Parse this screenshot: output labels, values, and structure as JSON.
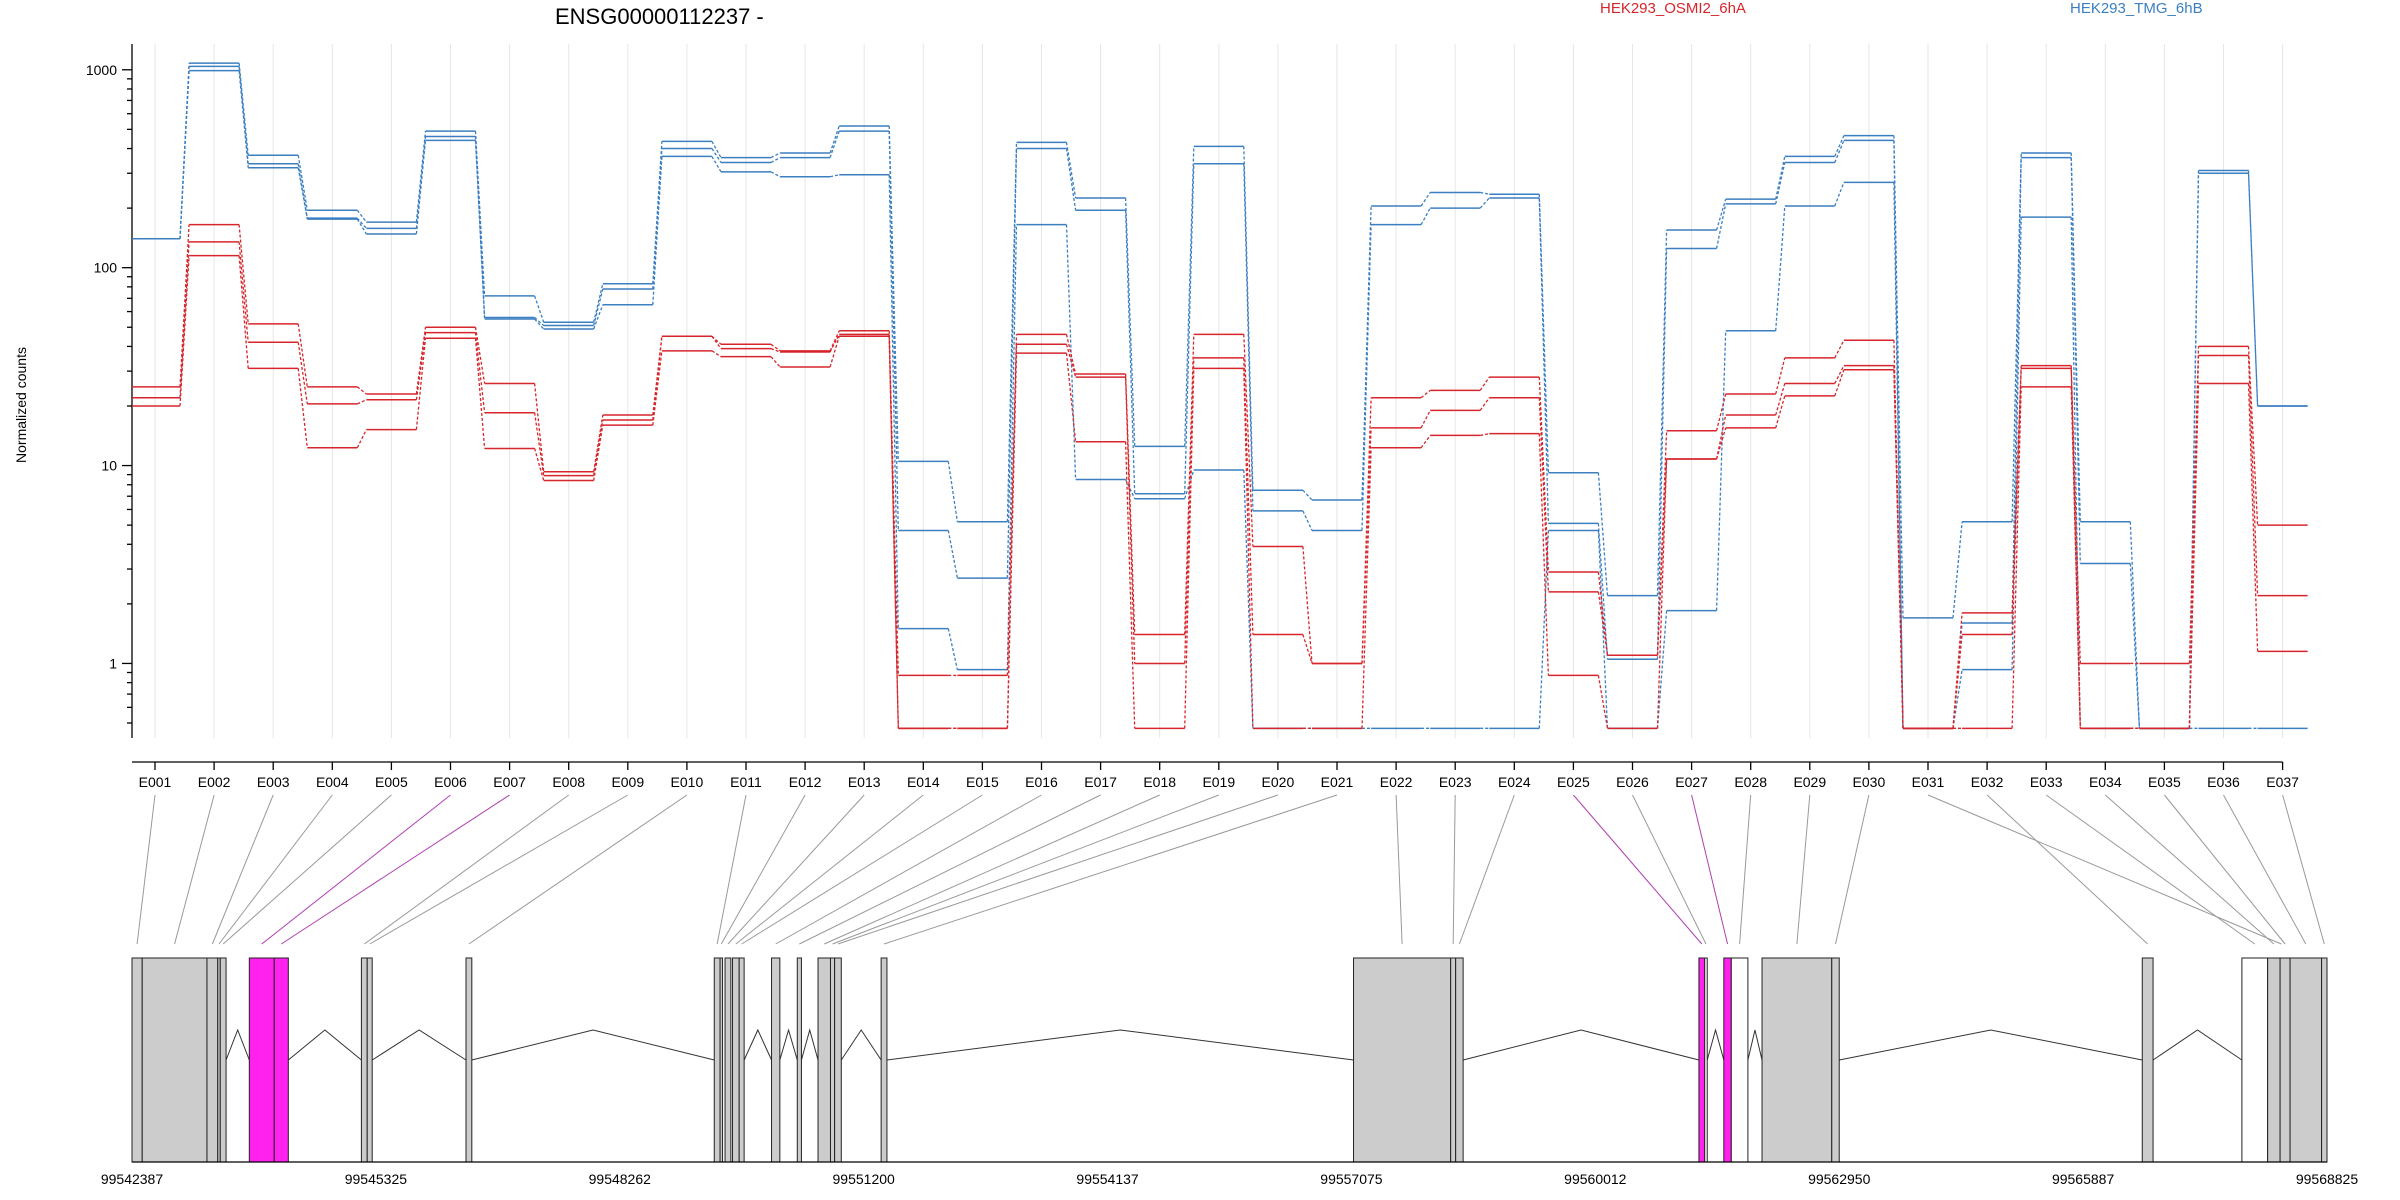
{
  "chart_data": {
    "type": "line",
    "title": "ENSG00000112237 -",
    "ylabel": "Normalized counts",
    "yscale": "log",
    "ylim": [
      0.42,
      1350
    ],
    "yticks": [
      {
        "value": 1,
        "label": "1"
      },
      {
        "value": 10,
        "label": "10"
      },
      {
        "value": 100,
        "label": "100"
      },
      {
        "value": 1000,
        "label": "1000"
      }
    ],
    "grid": true,
    "legend": [
      {
        "label": "HEK293_OSMI2_6hA",
        "color": "#d6262b"
      },
      {
        "label": "HEK293_TMG_6hB",
        "color": "#3b7fc1"
      }
    ],
    "categories": [
      "E001",
      "E002",
      "E003",
      "E004",
      "E005",
      "E006",
      "E007",
      "E008",
      "E009",
      "E010",
      "E011",
      "E012",
      "E013",
      "E014",
      "E015",
      "E016",
      "E017",
      "E018",
      "E019",
      "E020",
      "E021",
      "E022",
      "E023",
      "E024",
      "E025",
      "E026",
      "E027",
      "E028",
      "E029",
      "E030",
      "E031",
      "E032",
      "E033",
      "E034",
      "E035",
      "E036",
      "E037"
    ],
    "series": [
      {
        "name": "HEK293_TMG_6hB",
        "color": "#3b7fc1",
        "values": [
          140,
          1080,
          370,
          195,
          170,
          490,
          72,
          53,
          83,
          435,
          360,
          380,
          520,
          10.5,
          5.2,
          430,
          225,
          12.5,
          410,
          7.5,
          6.7,
          205,
          240,
          235,
          9.2,
          2.2,
          155,
          222,
          365,
          465,
          1.7,
          5.2,
          380,
          5.2,
          0.47,
          310,
          20
        ]
      },
      {
        "name": "HEK293_TMG_6hB",
        "color": "#3b7fc1",
        "values": [
          140,
          1040,
          335,
          178,
          158,
          460,
          56,
          51,
          78,
          400,
          340,
          360,
          490,
          4.7,
          2.7,
          400,
          195,
          7.2,
          335,
          5.9,
          4.7,
          165,
          200,
          225,
          5.1,
          1.05,
          125,
          210,
          340,
          440,
          0.47,
          1.6,
          360,
          3.2,
          0.47,
          300,
          20
        ]
      },
      {
        "name": "HEK293_TMG_6hB",
        "color": "#3b7fc1",
        "values": [
          140,
          990,
          320,
          176,
          148,
          440,
          55,
          49,
          65,
          365,
          305,
          288,
          295,
          1.5,
          0.93,
          165,
          8.5,
          6.8,
          9.5,
          0.47,
          0.47,
          0.47,
          0.47,
          0.47,
          4.7,
          0.47,
          1.85,
          48,
          205,
          270,
          0.47,
          0.93,
          180,
          0.47,
          0.47,
          0.47,
          0.47
        ]
      },
      {
        "name": "HEK293_OSMI2_6hA",
        "color": "#d6262b",
        "values": [
          25,
          165,
          52,
          25,
          23,
          50,
          26,
          9.3,
          18,
          45,
          41,
          38,
          48,
          0.87,
          0.87,
          46,
          29,
          1.4,
          46,
          3.9,
          1.0,
          22,
          24,
          28,
          2.9,
          1.1,
          15,
          23,
          35,
          43,
          0.47,
          1.8,
          32,
          1.0,
          1.0,
          40,
          5.0
        ]
      },
      {
        "name": "HEK293_OSMI2_6hA",
        "color": "#d6262b",
        "values": [
          22,
          135,
          42,
          20.5,
          21.5,
          47,
          18.5,
          8.9,
          17,
          45,
          39,
          37.5,
          46,
          0.47,
          0.47,
          41,
          28,
          1.0,
          35,
          1.4,
          1.0,
          15.5,
          19,
          22,
          2.3,
          1.1,
          10.8,
          18,
          26,
          32,
          0.47,
          1.4,
          31,
          0.47,
          0.47,
          36,
          2.2
        ]
      },
      {
        "name": "HEK293_OSMI2_6hA",
        "color": "#d6262b",
        "values": [
          20,
          115,
          31,
          12.3,
          15.2,
          44,
          12.2,
          8.4,
          16,
          38,
          35.5,
          31.5,
          45,
          0.47,
          0.47,
          37,
          13.2,
          0.47,
          31,
          0.47,
          0.47,
          12.3,
          14.2,
          14.5,
          0.87,
          0.47,
          10.8,
          15.5,
          22.5,
          30.5,
          0.47,
          0.47,
          25,
          0.47,
          0.47,
          26,
          1.15
        ]
      }
    ],
    "genomic_axis": {
      "range": [
        99542387,
        99568825
      ],
      "tick_labels": [
        "99542387",
        "99545325",
        "99548262",
        "99551200",
        "99554137",
        "99557075",
        "99560012",
        "99562950",
        "99565887",
        "99568825"
      ]
    },
    "exons": [
      {
        "id": "E001",
        "start": 99542387,
        "end": 99542510,
        "fill": "#cccccc"
      },
      {
        "id": "E002",
        "start": 99542510,
        "end": 99543290,
        "fill": "#cccccc"
      },
      {
        "id": "E003",
        "start": 99543290,
        "end": 99543420,
        "fill": "#cccccc"
      },
      {
        "id": "E004",
        "start": 99543420,
        "end": 99543450,
        "fill": "#cccccc"
      },
      {
        "id": "E005",
        "start": 99543450,
        "end": 99543520,
        "fill": "#cccccc"
      },
      {
        "id": "E006",
        "start": 99543800,
        "end": 99544100,
        "fill": "#ff22ee"
      },
      {
        "id": "E007",
        "start": 99544100,
        "end": 99544270,
        "fill": "#ff22ee"
      },
      {
        "id": "E008",
        "start": 99545150,
        "end": 99545220,
        "fill": "#cccccc"
      },
      {
        "id": "E009",
        "start": 99545220,
        "end": 99545280,
        "fill": "#cccccc"
      },
      {
        "id": "E010",
        "start": 99546410,
        "end": 99546480,
        "fill": "#cccccc"
      },
      {
        "id": "E011",
        "start": 99549400,
        "end": 99549470,
        "fill": "#cccccc"
      },
      {
        "id": "E012",
        "start": 99549470,
        "end": 99549500,
        "fill": "#cccccc"
      },
      {
        "id": "E013",
        "start": 99549530,
        "end": 99549600,
        "fill": "#cccccc"
      },
      {
        "id": "E014",
        "start": 99549620,
        "end": 99549700,
        "fill": "#cccccc"
      },
      {
        "id": "E015",
        "start": 99549700,
        "end": 99549760,
        "fill": "#cccccc"
      },
      {
        "id": "E016",
        "start": 99550090,
        "end": 99550190,
        "fill": "#cccccc"
      },
      {
        "id": "E017",
        "start": 99550400,
        "end": 99550450,
        "fill": "#cccccc"
      },
      {
        "id": "E018",
        "start": 99550650,
        "end": 99550800,
        "fill": "#cccccc"
      },
      {
        "id": "E019",
        "start": 99550800,
        "end": 99550850,
        "fill": "#cccccc"
      },
      {
        "id": "E020",
        "start": 99550850,
        "end": 99550930,
        "fill": "#cccccc"
      },
      {
        "id": "E021",
        "start": 99551410,
        "end": 99551480,
        "fill": "#cccccc"
      },
      {
        "id": "E022",
        "start": 99557100,
        "end": 99558270,
        "fill": "#cccccc"
      },
      {
        "id": "E023",
        "start": 99558270,
        "end": 99558330,
        "fill": "#cccccc"
      },
      {
        "id": "E024",
        "start": 99558330,
        "end": 99558420,
        "fill": "#cccccc"
      },
      {
        "id": "E025",
        "start": 99561260,
        "end": 99561330,
        "fill": "#ff22ee"
      },
      {
        "id": "E026",
        "start": 99561330,
        "end": 99561360,
        "fill": "#ffffff"
      },
      {
        "id": "E027",
        "start": 99561560,
        "end": 99561650,
        "fill": "#ff22ee"
      },
      {
        "id": "E028",
        "start": 99561650,
        "end": 99561850,
        "fill": "#ffffff"
      },
      {
        "id": "E029",
        "start": 99562020,
        "end": 99562860,
        "fill": "#cccccc"
      },
      {
        "id": "E030",
        "start": 99562860,
        "end": 99562950,
        "fill": "#cccccc"
      },
      {
        "id": "E031",
        "start": 99568200,
        "end": 99568350,
        "fill": "#cccccc"
      },
      {
        "id": "E032",
        "start": 99566600,
        "end": 99566730,
        "fill": "#cccccc"
      },
      {
        "id": "E033",
        "start": 99567800,
        "end": 99568110,
        "fill": "#ffffff"
      },
      {
        "id": "E034",
        "start": 99568110,
        "end": 99568260,
        "fill": "#cccccc"
      },
      {
        "id": "E035",
        "start": 99568260,
        "end": 99568380,
        "fill": "#cccccc"
      },
      {
        "id": "E036",
        "start": 99568380,
        "end": 99568760,
        "fill": "#cccccc"
      },
      {
        "id": "E037",
        "start": 99568760,
        "end": 99568825,
        "fill": "#cccccc"
      }
    ]
  }
}
